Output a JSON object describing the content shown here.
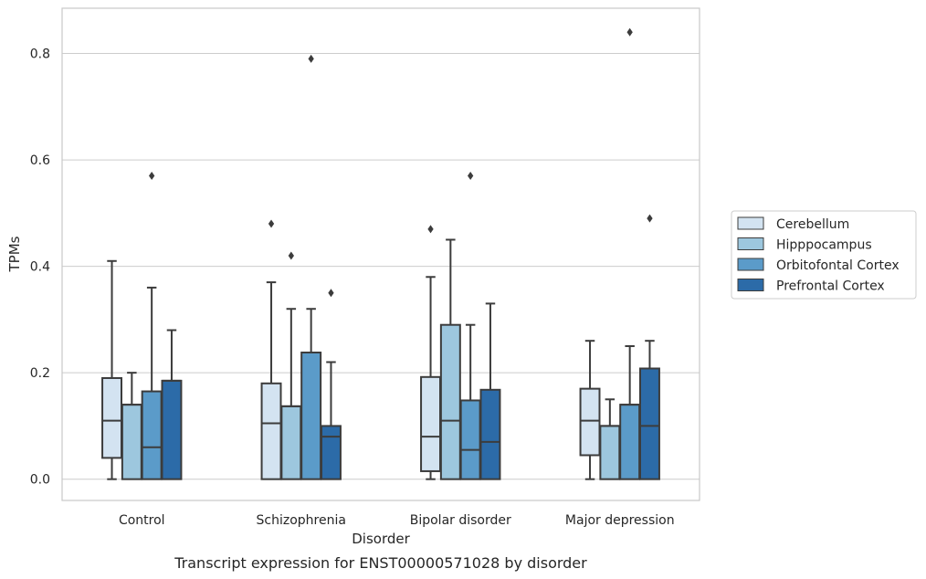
{
  "chart_data": {
    "type": "boxplot",
    "title": "",
    "caption": "Transcript expression for ENST00000571028 by disorder",
    "xlabel": "Disorder",
    "ylabel": "TPMs",
    "ylim": [
      -0.04,
      0.885
    ],
    "yticks": [
      0.0,
      0.2,
      0.4,
      0.6,
      0.8
    ],
    "ytick_labels": [
      "0.0",
      "0.2",
      "0.4",
      "0.6",
      "0.8"
    ],
    "grid": "horizontal",
    "legend_position": "right",
    "categories": [
      "Control",
      "Schizophrenia",
      "Bipolar disorder",
      "Major depression"
    ],
    "series": [
      {
        "name": "Cerebellum",
        "color": "#d3e3f1",
        "boxes": [
          {
            "whislo": 0.0,
            "q1": 0.04,
            "med": 0.11,
            "q3": 0.19,
            "whishi": 0.41,
            "fliers": []
          },
          {
            "whislo": 0.0,
            "q1": 0.0,
            "med": 0.105,
            "q3": 0.18,
            "whishi": 0.37,
            "fliers": [
              0.48
            ]
          },
          {
            "whislo": 0.0,
            "q1": 0.015,
            "med": 0.08,
            "q3": 0.192,
            "whishi": 0.38,
            "fliers": [
              0.47
            ]
          },
          {
            "whislo": 0.0,
            "q1": 0.045,
            "med": 0.11,
            "q3": 0.17,
            "whishi": 0.26,
            "fliers": []
          }
        ]
      },
      {
        "name": "Hipppocampus",
        "color": "#9dc7de",
        "boxes": [
          {
            "whislo": 0.0,
            "q1": 0.0,
            "med": 0.14,
            "q3": 0.14,
            "whishi": 0.2,
            "fliers": []
          },
          {
            "whislo": 0.0,
            "q1": 0.0,
            "med": 0.137,
            "q3": 0.137,
            "whishi": 0.32,
            "fliers": [
              0.42
            ]
          },
          {
            "whislo": 0.0,
            "q1": 0.0,
            "med": 0.11,
            "q3": 0.29,
            "whishi": 0.45,
            "fliers": []
          },
          {
            "whislo": 0.0,
            "q1": 0.0,
            "med": 0.1,
            "q3": 0.1,
            "whishi": 0.15,
            "fliers": []
          }
        ]
      },
      {
        "name": "Orbitofontal Cortex",
        "color": "#5b9bc9",
        "boxes": [
          {
            "whislo": 0.0,
            "q1": 0.0,
            "med": 0.06,
            "q3": 0.165,
            "whishi": 0.36,
            "fliers": [
              0.57
            ]
          },
          {
            "whislo": 0.0,
            "q1": 0.0,
            "med": 0.238,
            "q3": 0.238,
            "whishi": 0.32,
            "fliers": [
              0.79
            ]
          },
          {
            "whislo": 0.0,
            "q1": 0.0,
            "med": 0.055,
            "q3": 0.148,
            "whishi": 0.29,
            "fliers": [
              0.57
            ]
          },
          {
            "whislo": 0.0,
            "q1": 0.0,
            "med": 0.14,
            "q3": 0.14,
            "whishi": 0.25,
            "fliers": [
              0.84
            ]
          }
        ]
      },
      {
        "name": "Prefrontal Cortex",
        "color": "#2c6ba8",
        "boxes": [
          {
            "whislo": 0.0,
            "q1": 0.0,
            "med": 0.185,
            "q3": 0.185,
            "whishi": 0.28,
            "fliers": []
          },
          {
            "whislo": 0.0,
            "q1": 0.0,
            "med": 0.08,
            "q3": 0.1,
            "whishi": 0.22,
            "fliers": [
              0.35
            ]
          },
          {
            "whislo": 0.0,
            "q1": 0.0,
            "med": 0.07,
            "q3": 0.168,
            "whishi": 0.33,
            "fliers": []
          },
          {
            "whislo": 0.0,
            "q1": 0.0,
            "med": 0.1,
            "q3": 0.208,
            "whishi": 0.26,
            "fliers": [
              0.49
            ]
          }
        ]
      }
    ]
  },
  "colors": {
    "box_edge": "#3c3c3c",
    "grid": "#cccccc",
    "frame": "#c8c8c8",
    "text": "#262626"
  }
}
